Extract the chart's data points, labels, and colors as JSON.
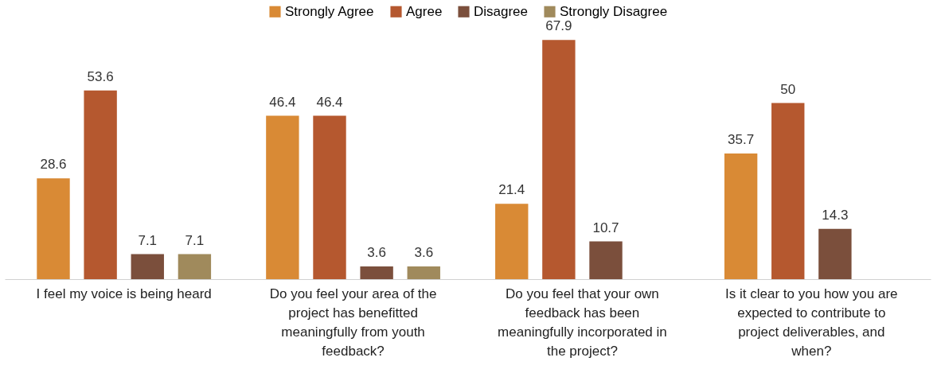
{
  "chart_data": {
    "type": "bar",
    "categories": [
      "I feel my voice is being heard",
      "Do you feel your area of the project has benefitted meaningfully from youth feedback?",
      "Do you feel that your own feedback has been meaningfully incorporated in the project?",
      "Is it clear to you how you are expected to contribute to project deliverables, and when?"
    ],
    "series": [
      {
        "name": "Strongly Agree",
        "color": "#d98a35",
        "values": [
          28.6,
          46.4,
          21.4,
          35.7
        ]
      },
      {
        "name": "Agree",
        "color": "#b5582f",
        "values": [
          53.6,
          46.4,
          67.9,
          50
        ]
      },
      {
        "name": "Disagree",
        "color": "#7b4f3c",
        "values": [
          7.1,
          3.6,
          10.7,
          14.3
        ]
      },
      {
        "name": "Strongly Disagree",
        "color": "#a08a5c",
        "values": [
          7.1,
          3.6,
          null,
          null
        ]
      }
    ],
    "data_labels": true,
    "legend": "top",
    "grid": false
  }
}
